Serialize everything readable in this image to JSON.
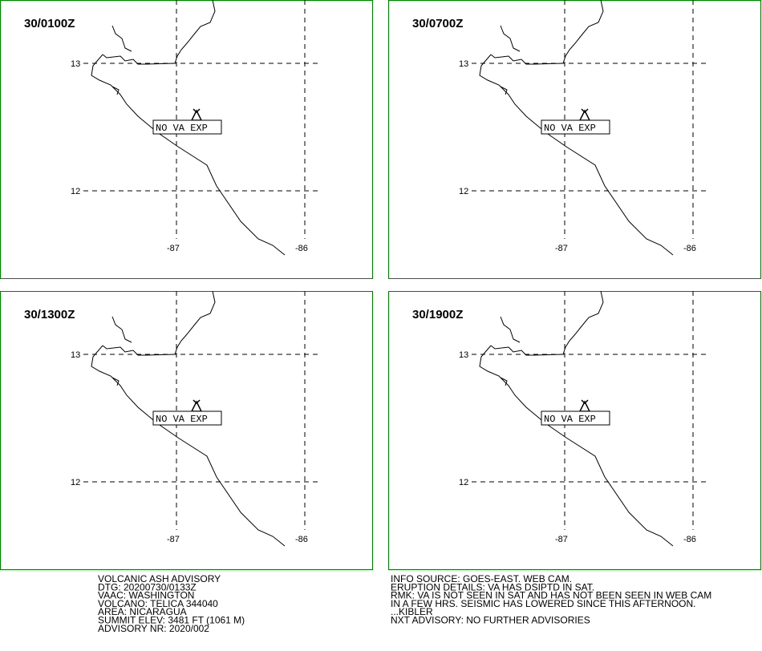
{
  "panels": [
    {
      "time": "30/0100Z",
      "lat_labels": [
        "13",
        "12"
      ],
      "lon_labels": [
        "-87",
        "-86"
      ],
      "box": "NO VA EXP"
    },
    {
      "time": "30/0700Z",
      "lat_labels": [
        "13",
        "12"
      ],
      "lon_labels": [
        "-87",
        "-86"
      ],
      "box": "NO VA EXP"
    },
    {
      "time": "30/1300Z",
      "lat_labels": [
        "13",
        "12"
      ],
      "lon_labels": [
        "-87",
        "-86"
      ],
      "box": "NO VA EXP"
    },
    {
      "time": "30/1900Z",
      "lat_labels": [
        "13",
        "12"
      ],
      "lon_labels": [
        "-87",
        "-86"
      ],
      "box": "NO VA EXP"
    }
  ],
  "footer": {
    "left": [
      "VOLCANIC ASH ADVISORY",
      "DTG: 20200730/0133Z",
      "VAAC: WASHINGTON",
      "VOLCANO: TELICA 344040",
      "AREA: NICARAGUA",
      "SUMMIT ELEV: 3481 FT (1061 M)",
      "ADVISORY NR: 2020/002"
    ],
    "right": [
      "INFO SOURCE: GOES-EAST. WEB CAM.",
      "ERUPTION DETAILS: VA HAS DSIPTD IN SAT.",
      "RMK: VA IS NOT SEEN IN SAT AND HAS NOT BEEN SEEN IN WEB CAM",
      "IN A FEW HRS. SEISMIC HAS LOWERED SINCE THIS AFTERNOON.",
      "...KIBLER",
      "NXT ADVISORY: NO FURTHER ADVISORIES"
    ]
  }
}
